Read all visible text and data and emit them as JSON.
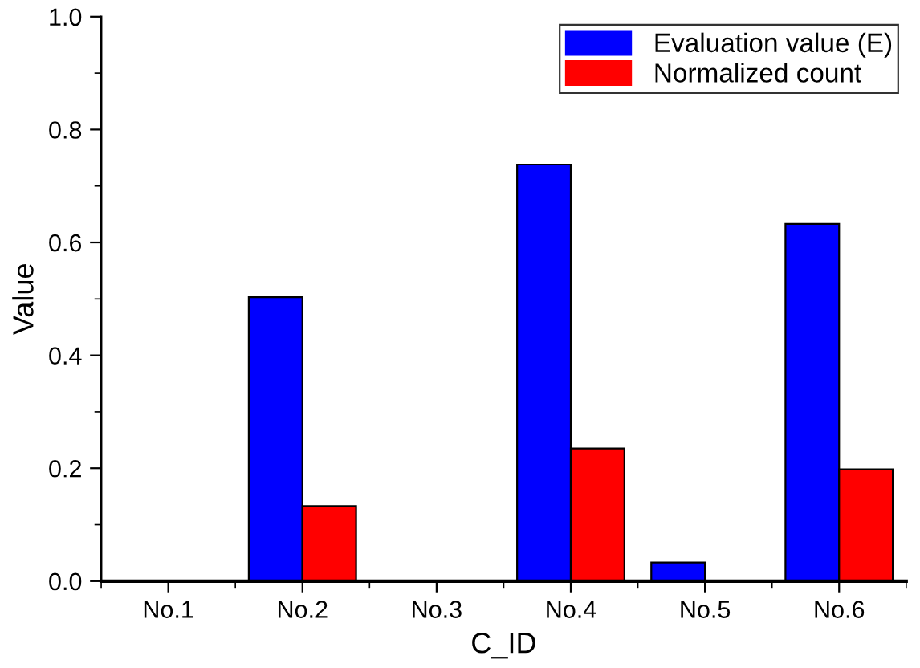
{
  "chart_data": {
    "type": "bar",
    "xlabel": "C_ID",
    "ylabel": "Value",
    "categories": [
      "No.1",
      "No.2",
      "No.3",
      "No.4",
      "No.5",
      "No.6"
    ],
    "series": [
      {
        "name": "Evaluation value (E)",
        "color": "#0000ff",
        "values": [
          0,
          0.503,
          0,
          0.738,
          0.033,
          0.633
        ]
      },
      {
        "name": "Normalized count",
        "color": "#ff0000",
        "values": [
          0,
          0.133,
          0,
          0.235,
          0,
          0.198
        ]
      }
    ],
    "ylim": [
      0,
      1.0
    ],
    "yticks": [
      {
        "value": 0,
        "label": "0.0"
      },
      0.2,
      0.4,
      0.6,
      0.8,
      {
        "value": 1,
        "label": "1.0"
      }
    ],
    "grid": false,
    "legend": "top right"
  }
}
